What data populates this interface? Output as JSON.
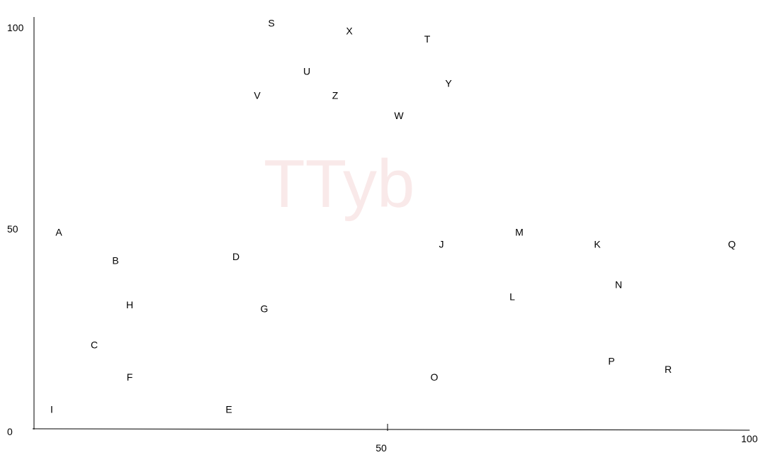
{
  "watermark": "TTyb",
  "chart_data": {
    "type": "scatter",
    "xlim": [
      0,
      100
    ],
    "ylim": [
      0,
      100
    ],
    "x_ticks": [
      {
        "value": 0,
        "label": "0"
      },
      {
        "value": 50,
        "label": "50"
      },
      {
        "value": 100,
        "label": "100"
      }
    ],
    "y_ticks": [
      {
        "value": 50,
        "label": "50"
      },
      {
        "value": 100,
        "label": "100"
      }
    ],
    "grid": false,
    "points": [
      {
        "label": "A",
        "x": 3,
        "y": 49
      },
      {
        "label": "B",
        "x": 11,
        "y": 42
      },
      {
        "label": "C",
        "x": 8,
        "y": 21
      },
      {
        "label": "D",
        "x": 28,
        "y": 43
      },
      {
        "label": "E",
        "x": 27,
        "y": 5
      },
      {
        "label": "F",
        "x": 13,
        "y": 13
      },
      {
        "label": "G",
        "x": 32,
        "y": 30
      },
      {
        "label": "H",
        "x": 13,
        "y": 31
      },
      {
        "label": "I",
        "x": 2,
        "y": 5
      },
      {
        "label": "J",
        "x": 57,
        "y": 46
      },
      {
        "label": "K",
        "x": 79,
        "y": 46
      },
      {
        "label": "L",
        "x": 67,
        "y": 33
      },
      {
        "label": "M",
        "x": 68,
        "y": 49
      },
      {
        "label": "N",
        "x": 82,
        "y": 36
      },
      {
        "label": "O",
        "x": 56,
        "y": 13
      },
      {
        "label": "P",
        "x": 81,
        "y": 17
      },
      {
        "label": "Q",
        "x": 98,
        "y": 46
      },
      {
        "label": "R",
        "x": 89,
        "y": 15
      },
      {
        "label": "S",
        "x": 33,
        "y": 101
      },
      {
        "label": "T",
        "x": 55,
        "y": 97
      },
      {
        "label": "U",
        "x": 38,
        "y": 89
      },
      {
        "label": "V",
        "x": 31,
        "y": 83
      },
      {
        "label": "W",
        "x": 51,
        "y": 78
      },
      {
        "label": "X",
        "x": 44,
        "y": 99
      },
      {
        "label": "Y",
        "x": 58,
        "y": 86
      },
      {
        "label": "Z",
        "x": 42,
        "y": 83
      }
    ]
  }
}
